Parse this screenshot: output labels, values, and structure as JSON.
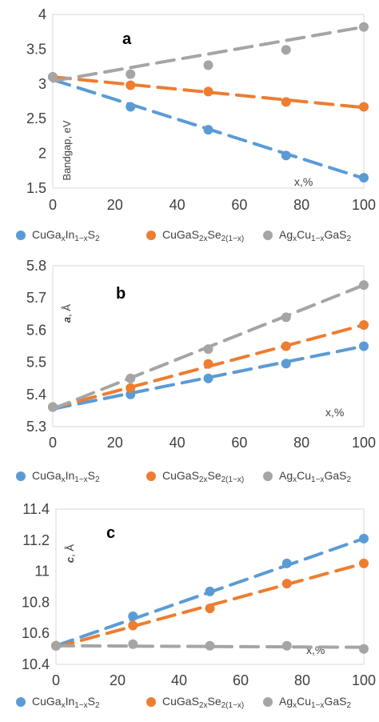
{
  "colors": {
    "blue": "#5B9BD5",
    "orange": "#ED7D31",
    "gray": "#A5A5A5"
  },
  "legend": [
    {
      "color": "blue",
      "parts": [
        [
          "CuGa",
          ""
        ],
        [
          "x",
          "sub"
        ],
        [
          "In",
          ""
        ],
        [
          "1−x",
          "sub"
        ],
        [
          "S",
          ""
        ],
        [
          "2",
          "sub"
        ]
      ]
    },
    {
      "color": "orange",
      "parts": [
        [
          "CuGaS",
          ""
        ],
        [
          "2x",
          "sub"
        ],
        [
          "Se",
          ""
        ],
        [
          "2(1−x)",
          "sub"
        ]
      ]
    },
    {
      "color": "gray",
      "parts": [
        [
          "Ag",
          ""
        ],
        [
          "x",
          "sub"
        ],
        [
          "Cu",
          ""
        ],
        [
          "1−x",
          "sub"
        ],
        [
          "GaS",
          ""
        ],
        [
          "2",
          "sub"
        ]
      ]
    }
  ],
  "chart_data": [
    {
      "type": "scatter",
      "panel_label": "a",
      "ylabel": "Bandgap, eV",
      "x_unit_label": "x,%",
      "xlim": [
        0,
        100
      ],
      "ylim": [
        1.5,
        4
      ],
      "xticks": [
        0,
        20,
        40,
        60,
        80,
        100
      ],
      "yticks": [
        1.5,
        2,
        2.5,
        3,
        3.5,
        4
      ],
      "ytick_labels": [
        "1.5",
        "2",
        "2.5",
        "3",
        "3.5",
        "4"
      ],
      "x": [
        0,
        25,
        50,
        75,
        100
      ],
      "series": [
        {
          "color": "blue",
          "values": [
            3.1,
            2.67,
            2.34,
            1.97,
            1.65
          ],
          "trend": [
            [
              0,
              3.06
            ],
            [
              100,
              1.64
            ]
          ]
        },
        {
          "color": "orange",
          "values": [
            3.1,
            2.98,
            2.89,
            2.74,
            2.67
          ],
          "trend": [
            [
              0,
              3.1
            ],
            [
              100,
              2.66
            ]
          ]
        },
        {
          "color": "gray",
          "values": [
            3.1,
            3.14,
            3.27,
            3.49,
            3.82
          ],
          "trend": [
            [
              0,
              3.04
            ],
            [
              100,
              3.82
            ]
          ]
        }
      ]
    },
    {
      "type": "scatter",
      "panel_label": "b",
      "ylabel_parts": [
        [
          "a",
          "italic"
        ],
        [
          ", Å",
          ""
        ]
      ],
      "x_unit_label": "x,%",
      "xlim": [
        0,
        100
      ],
      "ylim": [
        5.3,
        5.8
      ],
      "xticks": [
        0,
        20,
        40,
        60,
        80,
        100
      ],
      "yticks": [
        5.3,
        5.4,
        5.5,
        5.6,
        5.7,
        5.8
      ],
      "ytick_labels": [
        "5.3",
        "5.4",
        "5.5",
        "5.6",
        "5.7",
        "5.8"
      ],
      "x": [
        0,
        25,
        50,
        75,
        100
      ],
      "series": [
        {
          "color": "blue",
          "values": [
            5.361,
            5.4,
            5.45,
            5.496,
            5.55
          ],
          "trend": [
            [
              0,
              5.355
            ],
            [
              100,
              5.55
            ]
          ]
        },
        {
          "color": "orange",
          "values": [
            5.361,
            5.42,
            5.495,
            5.55,
            5.616
          ],
          "trend": [
            [
              0,
              5.358
            ],
            [
              100,
              5.616
            ]
          ]
        },
        {
          "color": "gray",
          "values": [
            5.361,
            5.45,
            5.541,
            5.64,
            5.74
          ],
          "trend": [
            [
              0,
              5.355
            ],
            [
              100,
              5.74
            ]
          ]
        }
      ]
    },
    {
      "type": "scatter",
      "panel_label": "c",
      "ylabel_parts": [
        [
          "c",
          "italic"
        ],
        [
          ", Å",
          ""
        ]
      ],
      "x_unit_label": "x,%",
      "xlim": [
        0,
        100
      ],
      "ylim": [
        10.4,
        11.4
      ],
      "xticks": [
        0,
        20,
        40,
        60,
        80,
        100
      ],
      "yticks": [
        10.4,
        10.6,
        10.8,
        11.0,
        11.2,
        11.4
      ],
      "ytick_labels": [
        "10.4",
        "10.6",
        "10.8",
        "11",
        "11.2",
        "11.4"
      ],
      "x": [
        0,
        25,
        50,
        75,
        100
      ],
      "series": [
        {
          "color": "blue",
          "values": [
            10.52,
            10.71,
            10.87,
            11.05,
            11.21
          ],
          "trend": [
            [
              0,
              10.52
            ],
            [
              100,
              11.21
            ]
          ]
        },
        {
          "color": "orange",
          "values": [
            10.52,
            10.65,
            10.76,
            10.92,
            11.05
          ],
          "trend": [
            [
              0,
              10.51
            ],
            [
              100,
              11.05
            ]
          ]
        },
        {
          "color": "gray",
          "values": [
            10.52,
            10.53,
            10.52,
            10.52,
            10.5
          ],
          "trend": [
            [
              0,
              10.52
            ],
            [
              100,
              10.51
            ]
          ]
        }
      ]
    }
  ]
}
